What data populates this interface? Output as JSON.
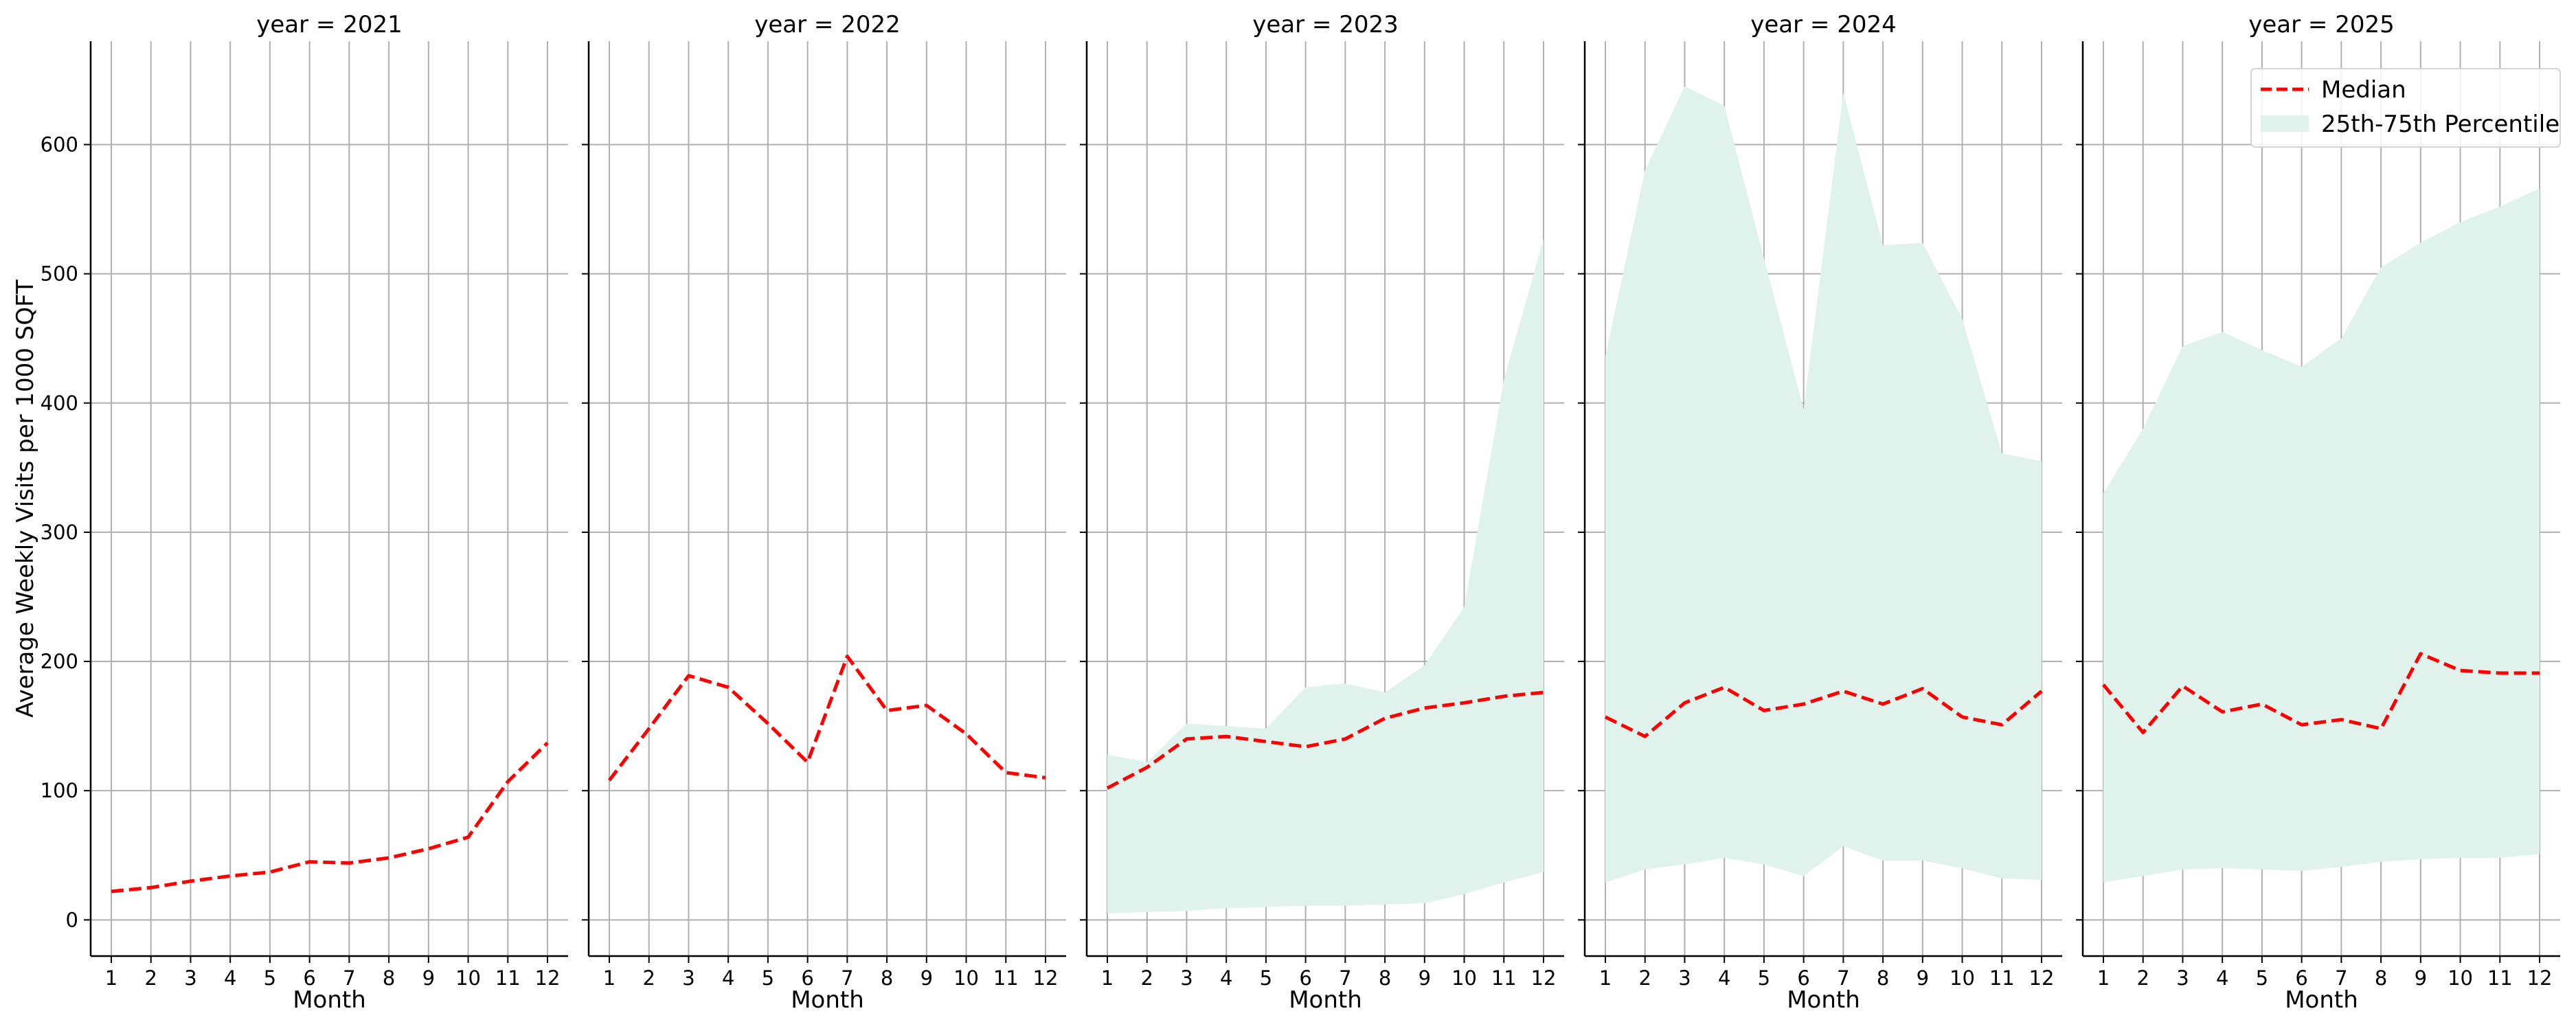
{
  "chart_data": {
    "type": "line",
    "ylabel": "Average Weekly Visits per 1000 SQFT",
    "xlabel": "Month",
    "x": [
      1,
      2,
      3,
      4,
      5,
      6,
      7,
      8,
      9,
      10,
      11,
      12
    ],
    "x_tick_labels": [
      "1",
      "2",
      "3",
      "4",
      "5",
      "6",
      "7",
      "8",
      "9",
      "10",
      "11",
      "12"
    ],
    "ylim": [
      -28,
      680
    ],
    "y_ticks": [
      0,
      100,
      200,
      300,
      400,
      500,
      600
    ],
    "y_tick_labels": [
      "0",
      "100",
      "200",
      "300",
      "400",
      "500",
      "600"
    ],
    "grid": true,
    "legend": {
      "placement": "top-right",
      "entries": [
        {
          "label": "Median",
          "style": "dashed-line",
          "color": "#ff0000"
        },
        {
          "label": "25th-75th Percentile",
          "style": "fill",
          "color": "#dff2ec"
        }
      ]
    },
    "colors": {
      "median": "#ff0000",
      "band": "#dff2ec"
    },
    "panels": [
      {
        "title": "year = 2021",
        "median": [
          22,
          25,
          30,
          34,
          37,
          45,
          44,
          48,
          55,
          64,
          107,
          137
        ],
        "p25": null,
        "p75": null
      },
      {
        "title": "year = 2022",
        "median": [
          108,
          148,
          189,
          180,
          152,
          122,
          204,
          162,
          166,
          144,
          114,
          110
        ],
        "p25": null,
        "p75": null
      },
      {
        "title": "year = 2023",
        "median": [
          102,
          118,
          140,
          142,
          138,
          134,
          140,
          156,
          164,
          168,
          173,
          176
        ],
        "p25": [
          5,
          6,
          7,
          9,
          10,
          11,
          11,
          12,
          13,
          20,
          29,
          37
        ],
        "p75": [
          128,
          122,
          152,
          150,
          148,
          180,
          183,
          176,
          197,
          242,
          418,
          527
        ]
      },
      {
        "title": "year = 2024",
        "median": [
          157,
          142,
          168,
          180,
          162,
          167,
          177,
          167,
          179,
          157,
          151,
          177
        ],
        "p25": [
          29,
          39,
          43,
          48,
          43,
          34,
          57,
          46,
          46,
          40,
          32,
          31
        ],
        "p75": [
          436,
          580,
          645,
          630,
          512,
          395,
          640,
          522,
          524,
          465,
          361,
          355
        ]
      },
      {
        "title": "year = 2025",
        "median": [
          182,
          145,
          181,
          161,
          167,
          151,
          155,
          148,
          206,
          193,
          191,
          191
        ],
        "p25": [
          29,
          34,
          39,
          40,
          39,
          38,
          41,
          45,
          47,
          48,
          48,
          51
        ],
        "p75": [
          330,
          380,
          444,
          455,
          441,
          428,
          450,
          505,
          524,
          540,
          552,
          566
        ]
      }
    ]
  }
}
